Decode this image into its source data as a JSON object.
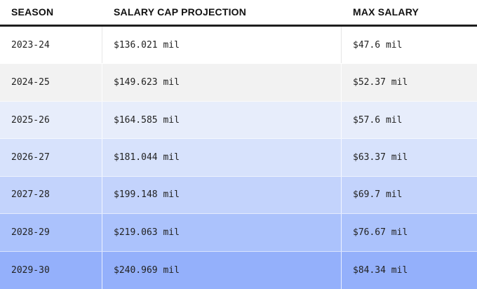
{
  "columns": [
    "SEASON",
    "SALARY CAP PROJECTION",
    "MAX SALARY"
  ],
  "rows": [
    {
      "season": "2023-24",
      "cap": "$136.021 mil",
      "max": "$47.6 mil",
      "bg": "#ffffff"
    },
    {
      "season": "2024-25",
      "cap": "$149.623 mil",
      "max": "$52.37 mil",
      "bg": "#f2f2f2"
    },
    {
      "season": "2025-26",
      "cap": "$164.585 mil",
      "max": "$57.6 mil",
      "bg": "#e7edfb"
    },
    {
      "season": "2026-27",
      "cap": "$181.044 mil",
      "max": "$63.37 mil",
      "bg": "#d7e2fc"
    },
    {
      "season": "2027-28",
      "cap": "$199.148 mil",
      "max": "$69.7 mil",
      "bg": "#c3d3fc"
    },
    {
      "season": "2028-29",
      "cap": "$219.063 mil",
      "max": "$76.67 mil",
      "bg": "#abc2fc"
    },
    {
      "season": "2029-30",
      "cap": "$240.969 mil",
      "max": "$84.34 mil",
      "bg": "#94b0fb"
    }
  ],
  "colors": {
    "header_rule": "#1e1e1e"
  }
}
